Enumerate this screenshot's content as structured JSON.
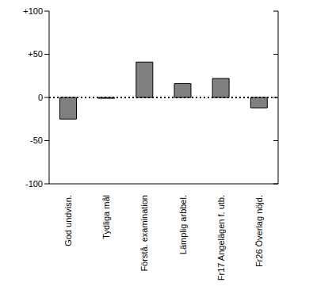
{
  "chart_data": {
    "type": "bar",
    "categories": [
      "God undvisn.",
      "Tydliga mål",
      "Förstå. examination",
      "Lämplig arbbel.",
      "Fr17 Angelägen f. utb.",
      "Fr26 Överlag nöjd."
    ],
    "values": [
      -25,
      -1,
      41,
      16,
      22,
      -12
    ],
    "color": "#808080",
    "ylim": [
      -100,
      100
    ],
    "yticks": [
      -100,
      -50,
      0,
      {
        "value": 50,
        "label": "+50"
      },
      {
        "value": 100,
        "label": "+100"
      }
    ],
    "grid": false
  }
}
